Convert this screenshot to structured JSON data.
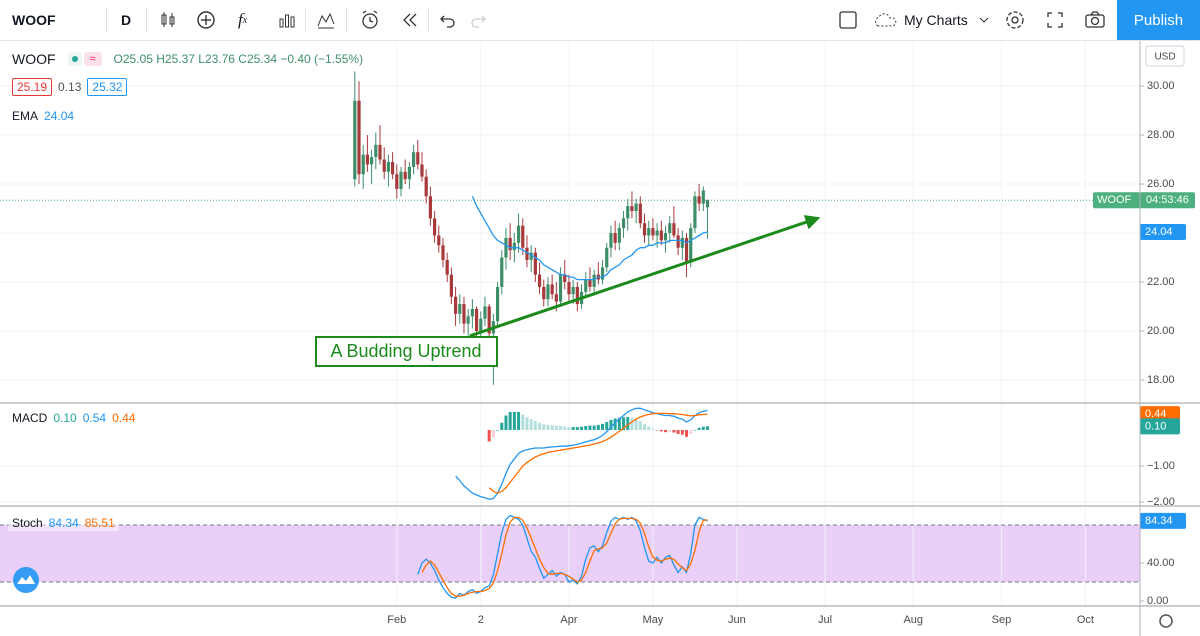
{
  "toolbar": {
    "symbol": "WOOF",
    "interval": "D",
    "layout": "My Charts",
    "publish": "Publish"
  },
  "currency": "USD",
  "chart_data": [
    {
      "type": "candlestick",
      "legend": {
        "symbol": "WOOF",
        "ohlc": "O25.05 H25.37 L23.76 C25.34 −0.40 (−1.55%)",
        "bid": "25.19",
        "spread": "0.13",
        "ask": "25.32"
      },
      "xlim": [
        -84.5,
        187
      ],
      "xticks": [
        {
          "value": 10,
          "label": "Feb"
        },
        {
          "value": 30,
          "label": "2"
        },
        {
          "value": 51,
          "label": "Apr"
        },
        {
          "value": 71,
          "label": "May"
        },
        {
          "value": 91,
          "label": "Jun"
        },
        {
          "value": 112,
          "label": "Jul"
        },
        {
          "value": 133,
          "label": "Aug"
        },
        {
          "value": 154,
          "label": "Sep"
        },
        {
          "value": 174,
          "label": "Oct"
        }
      ],
      "ylim": [
        17.1,
        31.8
      ],
      "yticks": [
        {
          "value": 18,
          "label": "18.00"
        },
        {
          "value": 20,
          "label": "20.00"
        },
        {
          "value": 22,
          "label": "22.00"
        },
        {
          "value": 24,
          "label": "24.00"
        },
        {
          "value": 26,
          "label": "26.00"
        },
        {
          "value": 28,
          "label": "28.00"
        },
        {
          "value": 30,
          "label": "30.00"
        }
      ],
      "grid": true,
      "up_color": "#3e8e6a",
      "down_color": "#a8393b",
      "ohlc": [
        [
          26.2,
          30.6,
          25.9,
          29.4
        ],
        [
          29.4,
          30.2,
          26.0,
          26.4
        ],
        [
          26.4,
          27.6,
          25.8,
          27.2
        ],
        [
          27.2,
          28.0,
          26.5,
          26.8
        ],
        [
          26.8,
          27.4,
          26.0,
          27.1
        ],
        [
          27.1,
          28.1,
          26.6,
          27.6
        ],
        [
          27.6,
          28.4,
          26.8,
          27.0
        ],
        [
          27.0,
          27.5,
          26.2,
          26.5
        ],
        [
          26.5,
          27.2,
          25.9,
          26.9
        ],
        [
          26.9,
          27.3,
          26.2,
          26.4
        ],
        [
          26.4,
          26.8,
          25.4,
          25.8
        ],
        [
          25.8,
          26.7,
          25.5,
          26.5
        ],
        [
          26.5,
          27.0,
          26.0,
          26.2
        ],
        [
          26.2,
          26.9,
          25.8,
          26.7
        ],
        [
          26.7,
          27.6,
          26.4,
          27.3
        ],
        [
          27.3,
          27.8,
          26.6,
          26.8
        ],
        [
          26.8,
          27.3,
          26.1,
          26.3
        ],
        [
          26.3,
          26.6,
          25.2,
          25.5
        ],
        [
          25.5,
          25.9,
          24.3,
          24.6
        ],
        [
          24.6,
          24.9,
          23.6,
          23.9
        ],
        [
          23.9,
          24.3,
          23.2,
          23.5
        ],
        [
          23.5,
          23.8,
          22.6,
          22.9
        ],
        [
          22.9,
          23.2,
          22.0,
          22.3
        ],
        [
          22.3,
          22.6,
          21.1,
          21.4
        ],
        [
          21.4,
          21.8,
          20.2,
          20.7
        ],
        [
          20.7,
          21.5,
          20.3,
          21.1
        ],
        [
          21.1,
          21.4,
          19.9,
          20.3
        ],
        [
          20.3,
          20.9,
          19.8,
          20.6
        ],
        [
          20.6,
          21.3,
          20.1,
          20.9
        ],
        [
          20.9,
          21.0,
          19.8,
          20.0
        ],
        [
          20.0,
          20.8,
          19.6,
          20.5
        ],
        [
          20.5,
          21.4,
          20.2,
          21.0
        ],
        [
          21.0,
          21.1,
          19.7,
          19.9
        ],
        [
          19.9,
          20.7,
          17.8,
          20.4
        ],
        [
          20.4,
          22.0,
          20.2,
          21.8
        ],
        [
          21.8,
          23.3,
          21.5,
          23.0
        ],
        [
          23.0,
          24.2,
          22.5,
          23.8
        ],
        [
          23.8,
          24.4,
          22.9,
          23.3
        ],
        [
          23.3,
          24.0,
          22.8,
          23.6
        ],
        [
          23.6,
          24.8,
          23.2,
          24.3
        ],
        [
          24.3,
          24.6,
          23.1,
          23.4
        ],
        [
          23.4,
          23.9,
          22.6,
          22.9
        ],
        [
          22.9,
          23.5,
          22.4,
          23.2
        ],
        [
          23.2,
          23.4,
          22.0,
          22.3
        ],
        [
          22.3,
          22.8,
          21.5,
          21.8
        ],
        [
          21.8,
          22.1,
          21.0,
          21.3
        ],
        [
          21.3,
          22.2,
          21.0,
          21.9
        ],
        [
          21.9,
          22.3,
          21.3,
          21.5
        ],
        [
          21.5,
          22.0,
          20.8,
          21.2
        ],
        [
          21.2,
          22.6,
          21.0,
          22.3
        ],
        [
          22.3,
          22.9,
          21.7,
          22.0
        ],
        [
          22.0,
          22.3,
          21.2,
          21.5
        ],
        [
          21.5,
          22.1,
          21.1,
          21.8
        ],
        [
          21.8,
          22.0,
          20.8,
          21.1
        ],
        [
          21.1,
          21.9,
          20.9,
          21.6
        ],
        [
          21.6,
          22.4,
          21.4,
          22.1
        ],
        [
          22.1,
          22.6,
          21.6,
          21.8
        ],
        [
          21.8,
          22.5,
          21.5,
          22.3
        ],
        [
          22.3,
          22.8,
          21.9,
          22.1
        ],
        [
          22.1,
          22.9,
          21.9,
          22.6
        ],
        [
          22.6,
          23.6,
          22.4,
          23.4
        ],
        [
          23.4,
          24.3,
          23.0,
          24.0
        ],
        [
          24.0,
          24.5,
          23.3,
          23.6
        ],
        [
          23.6,
          24.4,
          23.3,
          24.2
        ],
        [
          24.2,
          24.9,
          23.8,
          24.6
        ],
        [
          24.6,
          25.4,
          24.1,
          25.1
        ],
        [
          25.1,
          25.7,
          24.6,
          24.9
        ],
        [
          24.9,
          25.4,
          24.4,
          25.2
        ],
        [
          25.2,
          25.5,
          24.2,
          24.4
        ],
        [
          24.4,
          24.8,
          23.6,
          23.9
        ],
        [
          23.9,
          24.5,
          23.5,
          24.2
        ],
        [
          24.2,
          24.6,
          23.7,
          23.9
        ],
        [
          23.9,
          24.4,
          23.4,
          24.1
        ],
        [
          24.1,
          24.5,
          23.5,
          23.7
        ],
        [
          23.7,
          24.3,
          23.2,
          24.0
        ],
        [
          24.0,
          24.7,
          23.6,
          24.4
        ],
        [
          24.4,
          25.1,
          23.8,
          23.9
        ],
        [
          23.9,
          24.2,
          23.1,
          23.4
        ],
        [
          23.4,
          24.1,
          22.9,
          23.8
        ],
        [
          23.8,
          24.0,
          22.2,
          22.8
        ],
        [
          22.8,
          24.4,
          22.6,
          24.2
        ],
        [
          24.2,
          25.7,
          24.0,
          25.5
        ],
        [
          25.5,
          26.0,
          24.9,
          25.2
        ],
        [
          25.2,
          25.9,
          24.9,
          25.74
        ],
        [
          25.05,
          25.37,
          23.76,
          25.34
        ]
      ],
      "ema": {
        "name": "EMA",
        "color": "#2196f3",
        "value_label": "24.04",
        "values": [
          null,
          null,
          null,
          null,
          null,
          null,
          null,
          null,
          null,
          null,
          null,
          null,
          null,
          null,
          null,
          null,
          null,
          null,
          null,
          null,
          null,
          null,
          null,
          null,
          null,
          null,
          null,
          null,
          25.5,
          25.1,
          24.8,
          24.5,
          24.2,
          23.9,
          23.7,
          23.6,
          23.5,
          23.4,
          23.4,
          23.4,
          23.3,
          23.2,
          23.1,
          23.0,
          22.9,
          22.7,
          22.6,
          22.5,
          22.4,
          22.3,
          22.3,
          22.2,
          22.2,
          22.1,
          22.1,
          22.1,
          22.1,
          22.1,
          22.2,
          22.2,
          22.3,
          22.5,
          22.6,
          22.7,
          22.9,
          23.0,
          23.1,
          23.3,
          23.4,
          23.4,
          23.5,
          23.5,
          23.6,
          23.6,
          23.6,
          23.7,
          23.7,
          23.7,
          23.7,
          23.6,
          23.7,
          23.8,
          23.9,
          24.0,
          24.04
        ]
      },
      "last_price": {
        "value": 25.34,
        "symbol": "WOOF",
        "countdown": "04:53:46",
        "color": "#4caf7d"
      },
      "trendline": {
        "points": [
          [
            27.4,
            19.8
          ],
          [
            110.2,
            24.6
          ]
        ],
        "color": "#1b8a1b",
        "annotation": "A Budding Uptrend"
      }
    },
    {
      "type": "macd",
      "name": "MACD",
      "xlim": [
        -84.5,
        187
      ],
      "ylim": [
        -2.08,
        0.72
      ],
      "yticks": [
        {
          "value": -1,
          "label": "−1.00"
        },
        {
          "value": -2,
          "label": "−2.00"
        }
      ],
      "histogram": {
        "value_label": "0.10",
        "color": "#26a69a",
        "values": [
          null,
          null,
          null,
          null,
          null,
          null,
          null,
          null,
          null,
          null,
          null,
          null,
          null,
          null,
          null,
          null,
          null,
          null,
          null,
          null,
          null,
          null,
          null,
          null,
          null,
          null,
          null,
          null,
          null,
          null,
          null,
          null,
          -0.32,
          -0.2,
          0,
          0.2,
          0.4,
          0.5,
          0.5,
          0.5,
          0.42,
          0.35,
          0.3,
          0.25,
          0.2,
          0.16,
          0.14,
          0.13,
          0.12,
          0.11,
          0.09,
          0.08,
          0.08,
          0.08,
          0.09,
          0.11,
          0.12,
          0.12,
          0.14,
          0.17,
          0.22,
          0.28,
          0.32,
          0.34,
          0.35,
          0.36,
          0.34,
          0.3,
          0.24,
          0.16,
          0.09,
          0.03,
          -0.01,
          -0.04,
          -0.06,
          -0.05,
          -0.07,
          -0.11,
          -0.13,
          -0.19,
          -0.11,
          0,
          0.06,
          0.09,
          0.1
        ]
      },
      "macd": {
        "value_label": "0.54",
        "color": "#2196f3",
        "values": [
          null,
          null,
          null,
          null,
          null,
          null,
          null,
          null,
          null,
          null,
          null,
          null,
          null,
          null,
          null,
          null,
          null,
          null,
          null,
          null,
          null,
          null,
          null,
          null,
          -1.28,
          -1.4,
          -1.55,
          -1.65,
          -1.75,
          -1.8,
          -1.85,
          -1.88,
          -1.92,
          -1.9,
          -1.75,
          -1.5,
          -1.2,
          -0.95,
          -0.8,
          -0.65,
          -0.58,
          -0.55,
          -0.52,
          -0.5,
          -0.5,
          -0.5,
          -0.48,
          -0.47,
          -0.46,
          -0.45,
          -0.45,
          -0.44,
          -0.42,
          -0.4,
          -0.37,
          -0.33,
          -0.3,
          -0.27,
          -0.22,
          -0.15,
          -0.05,
          0.08,
          0.2,
          0.3,
          0.4,
          0.5,
          0.56,
          0.6,
          0.6,
          0.56,
          0.52,
          0.48,
          0.45,
          0.42,
          0.4,
          0.4,
          0.38,
          0.33,
          0.3,
          0.22,
          0.28,
          0.4,
          0.48,
          0.52,
          0.54
        ]
      },
      "signal": {
        "value_label": "0.44",
        "color": "#ff6d00",
        "values": [
          null,
          null,
          null,
          null,
          null,
          null,
          null,
          null,
          null,
          null,
          null,
          null,
          null,
          null,
          null,
          null,
          null,
          null,
          null,
          null,
          null,
          null,
          null,
          null,
          null,
          null,
          null,
          null,
          null,
          null,
          null,
          null,
          -1.6,
          -1.7,
          -1.75,
          -1.7,
          -1.6,
          -1.45,
          -1.3,
          -1.15,
          -1.0,
          -0.9,
          -0.82,
          -0.75,
          -0.7,
          -0.66,
          -0.62,
          -0.6,
          -0.58,
          -0.56,
          -0.54,
          -0.52,
          -0.5,
          -0.48,
          -0.46,
          -0.44,
          -0.42,
          -0.39,
          -0.36,
          -0.32,
          -0.27,
          -0.2,
          -0.12,
          -0.04,
          0.05,
          0.14,
          0.22,
          0.3,
          0.36,
          0.4,
          0.43,
          0.45,
          0.46,
          0.46,
          0.46,
          0.45,
          0.45,
          0.44,
          0.43,
          0.41,
          0.39,
          0.4,
          0.42,
          0.43,
          0.44
        ]
      }
    },
    {
      "type": "stoch",
      "name": "Stoch",
      "xlim": [
        -84.5,
        187
      ],
      "ylim": [
        -5.3,
        97.9
      ],
      "yticks": [
        {
          "value": 0,
          "label": "0.00"
        },
        {
          "value": 40,
          "label": "40.00"
        }
      ],
      "band": [
        20,
        80
      ],
      "band_color": "#ead0f8",
      "k": {
        "value_label": "84.34",
        "color": "#2196f3",
        "values": [
          null,
          null,
          null,
          null,
          null,
          null,
          null,
          null,
          null,
          null,
          null,
          null,
          null,
          null,
          null,
          28,
          40,
          44,
          40,
          32,
          22,
          14,
          8,
          4,
          3,
          8,
          6,
          10,
          12,
          8,
          10,
          14,
          16,
          28,
          50,
          72,
          86,
          90,
          88,
          86,
          80,
          66,
          52,
          46,
          34,
          24,
          28,
          32,
          26,
          30,
          28,
          20,
          22,
          18,
          26,
          44,
          56,
          58,
          52,
          58,
          72,
          84,
          88,
          86,
          88,
          86,
          88,
          84,
          74,
          56,
          42,
          40,
          46,
          40,
          46,
          48,
          38,
          30,
          36,
          30,
          50,
          80,
          88,
          86,
          84.34
        ]
      },
      "d": {
        "value_label": "85.51",
        "color": "#ff6d00",
        "values": [
          null,
          null,
          null,
          null,
          null,
          null,
          null,
          null,
          null,
          null,
          null,
          null,
          null,
          null,
          null,
          null,
          30,
          38,
          42,
          38,
          30,
          22,
          14,
          8,
          5,
          5,
          6,
          8,
          9,
          10,
          10,
          11,
          13,
          19,
          32,
          50,
          70,
          83,
          88,
          88,
          85,
          77,
          66,
          55,
          44,
          35,
          29,
          28,
          29,
          29,
          28,
          26,
          23,
          20,
          22,
          30,
          42,
          53,
          55,
          56,
          61,
          71,
          81,
          86,
          87,
          87,
          87,
          86,
          82,
          71,
          57,
          46,
          43,
          42,
          44,
          45,
          44,
          39,
          35,
          32,
          39,
          53,
          73,
          85,
          85.51
        ]
      }
    }
  ]
}
